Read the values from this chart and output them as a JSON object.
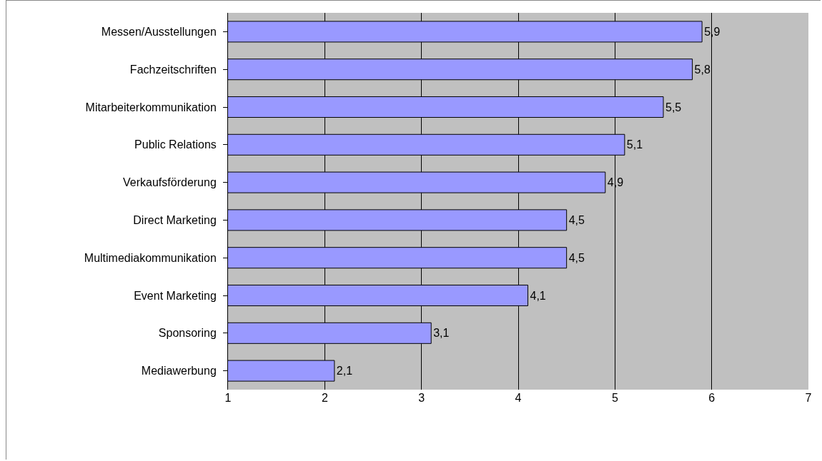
{
  "chart_data": {
    "type": "bar",
    "orientation": "horizontal",
    "categories": [
      "Messen/Ausstellungen",
      "Fachzeitschriften",
      "Mitarbeiterkommunikation",
      "Public Relations",
      "Verkaufsförderung",
      "Direct Marketing",
      "Multimediakommunikation",
      "Event Marketing",
      "Sponsoring",
      "Mediawerbung"
    ],
    "values": [
      5.9,
      5.8,
      5.5,
      5.1,
      4.9,
      4.5,
      4.5,
      4.1,
      3.1,
      2.1
    ],
    "value_labels": [
      "5,9",
      "5,8",
      "5,5",
      "5,1",
      "4,9",
      "4,5",
      "4,5",
      "4,1",
      "3,1",
      "2,1"
    ],
    "color": "#9999ff",
    "xlim": [
      1,
      7
    ],
    "xticks": [
      1,
      2,
      3,
      4,
      5,
      6,
      7
    ],
    "grid": "x"
  }
}
